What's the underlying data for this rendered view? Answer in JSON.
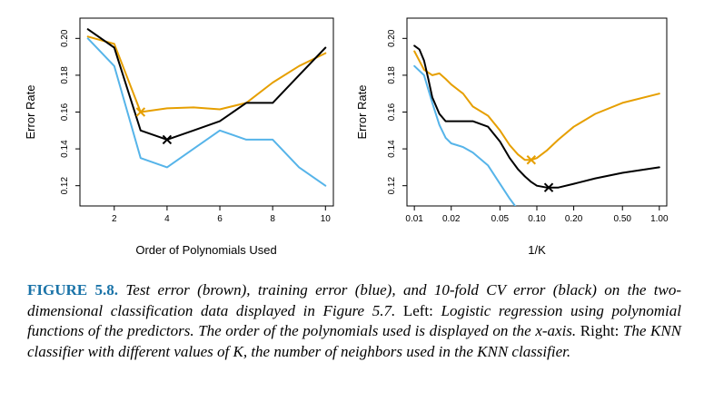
{
  "chart_data": [
    {
      "type": "line",
      "panel": "left",
      "xlabel": "Order of Polynomials Used",
      "ylabel": "Error Rate",
      "x_ticks": [
        2,
        4,
        6,
        8,
        10
      ],
      "y_ticks": [
        0.12,
        0.14,
        0.16,
        0.18,
        0.2
      ],
      "xlim": [
        0.7,
        10.3
      ],
      "ylim": [
        0.109,
        0.211
      ],
      "x_scale": "linear",
      "series": [
        {
          "color": "#E69F00",
          "x": [
            1,
            2,
            3,
            4,
            5,
            6,
            7,
            8,
            9,
            10
          ],
          "y": [
            0.201,
            0.197,
            0.16,
            0.162,
            0.1625,
            0.1615,
            0.165,
            0.176,
            0.185,
            0.192
          ]
        },
        {
          "color": "#56B4E9",
          "x": [
            1,
            2,
            3,
            4,
            5,
            6,
            7,
            8,
            9,
            10
          ],
          "y": [
            0.2,
            0.185,
            0.135,
            0.13,
            0.14,
            0.15,
            0.145,
            0.145,
            0.13,
            0.12
          ]
        },
        {
          "color": "#000000",
          "x": [
            1,
            2,
            3,
            4,
            5,
            6,
            7,
            8,
            9,
            10
          ],
          "y": [
            0.205,
            0.195,
            0.15,
            0.145,
            0.15,
            0.155,
            0.165,
            0.165,
            0.18,
            0.195
          ]
        }
      ],
      "markers": [
        {
          "color": "#E69F00",
          "x": 3,
          "y": 0.16
        },
        {
          "color": "#000000",
          "x": 4,
          "y": 0.145
        }
      ]
    },
    {
      "type": "line",
      "panel": "right",
      "xlabel": "1/K",
      "ylabel": "Error Rate",
      "x_ticks": [
        0.01,
        0.02,
        0.05,
        0.1,
        0.2,
        0.5,
        1.0
      ],
      "x_tick_labels": [
        "0.01",
        "0.02",
        "0.05",
        "0.10",
        "0.20",
        "0.50",
        "1.00"
      ],
      "y_ticks": [
        0.12,
        0.14,
        0.16,
        0.18,
        0.2
      ],
      "xlim": [
        0.0087,
        1.15
      ],
      "ylim": [
        0.109,
        0.211
      ],
      "x_scale": "log",
      "series": [
        {
          "color": "#E69F00",
          "x": [
            0.01,
            0.012,
            0.014,
            0.016,
            0.018,
            0.02,
            0.025,
            0.03,
            0.04,
            0.05,
            0.06,
            0.07,
            0.08,
            0.09,
            0.1,
            0.12,
            0.15,
            0.2,
            0.3,
            0.5,
            1.0
          ],
          "y": [
            0.193,
            0.183,
            0.18,
            0.181,
            0.178,
            0.175,
            0.17,
            0.163,
            0.158,
            0.15,
            0.142,
            0.137,
            0.134,
            0.134,
            0.135,
            0.139,
            0.145,
            0.152,
            0.159,
            0.165,
            0.17
          ]
        },
        {
          "color": "#56B4E9",
          "x": [
            0.01,
            0.012,
            0.014,
            0.016,
            0.018,
            0.02,
            0.025,
            0.03,
            0.04,
            0.05,
            0.06,
            0.07
          ],
          "y": [
            0.185,
            0.18,
            0.165,
            0.153,
            0.146,
            0.143,
            0.141,
            0.138,
            0.131,
            0.121,
            0.113,
            0.107
          ]
        },
        {
          "color": "#000000",
          "x": [
            0.01,
            0.011,
            0.012,
            0.013,
            0.014,
            0.016,
            0.018,
            0.02,
            0.025,
            0.03,
            0.04,
            0.05,
            0.06,
            0.07,
            0.08,
            0.09,
            0.1,
            0.12,
            0.15,
            0.2,
            0.3,
            0.5,
            1.0
          ],
          "y": [
            0.196,
            0.194,
            0.188,
            0.178,
            0.168,
            0.159,
            0.155,
            0.155,
            0.155,
            0.155,
            0.152,
            0.144,
            0.135,
            0.129,
            0.125,
            0.122,
            0.12,
            0.119,
            0.119,
            0.121,
            0.124,
            0.127,
            0.13
          ]
        }
      ],
      "markers": [
        {
          "color": "#E69F00",
          "x": 0.09,
          "y": 0.134
        },
        {
          "color": "#000000",
          "x": 0.125,
          "y": 0.119
        }
      ]
    }
  ],
  "caption": {
    "label": "FIGURE 5.8.",
    "seg1": "Test error (brown), training error (blue), and 10-fold CV error (black) on the two-dimensional classification data displayed in Figure 5.7.",
    "seg2": "Left:",
    "seg3": "Logistic regression using polynomial functions of the predictors. The order of the polynomials used is displayed on the x-axis.",
    "seg4": "Right:",
    "seg5": "The KNN classifier with different values of K, the number of neighbors used in the KNN classifier."
  }
}
